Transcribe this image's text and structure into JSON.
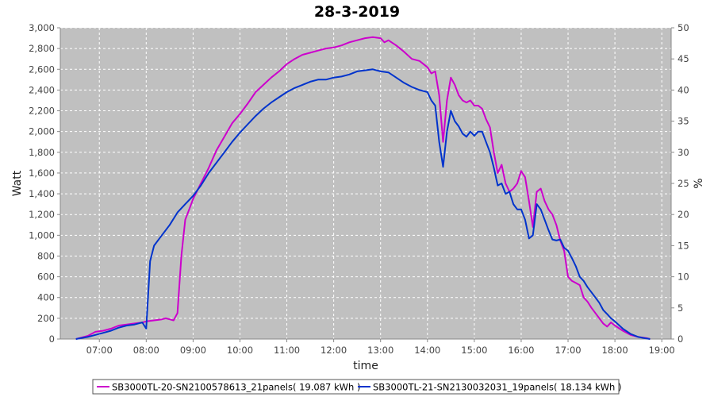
{
  "chart_data": {
    "type": "line",
    "title": "28-3-2019",
    "xlabel": "time",
    "ylabel": "Watt",
    "ylabel_right": "%",
    "ylim": [
      0,
      3000
    ],
    "ylim_right": [
      0,
      50
    ],
    "x_ticks": [
      "07:00",
      "08:00",
      "09:00",
      "10:00",
      "11:00",
      "12:00",
      "13:00",
      "14:00",
      "15:00",
      "16:00",
      "17:00",
      "18:00",
      "19:00"
    ],
    "y_ticks": [
      "0",
      "200",
      "400",
      "600",
      "800",
      "1,000",
      "1,200",
      "1,400",
      "1,600",
      "1,800",
      "2,000",
      "2,200",
      "2,400",
      "2,600",
      "2,800",
      "3,000"
    ],
    "y_right_ticks": [
      "0",
      "5",
      "10",
      "15",
      "20",
      "25",
      "30",
      "35",
      "40",
      "45",
      "50"
    ],
    "grid": true,
    "legend_position": "bottom",
    "series": [
      {
        "name": "SB3000TL-20-SN2100578613_21panels( 19.087 kWh )",
        "color": "#cc00cc",
        "points": [
          [
            "06:30",
            0
          ],
          [
            "06:45",
            30
          ],
          [
            "06:55",
            70
          ],
          [
            "07:05",
            80
          ],
          [
            "07:15",
            100
          ],
          [
            "07:25",
            130
          ],
          [
            "07:35",
            140
          ],
          [
            "07:45",
            150
          ],
          [
            "07:55",
            160
          ],
          [
            "08:00",
            170
          ],
          [
            "08:10",
            180
          ],
          [
            "08:20",
            190
          ],
          [
            "08:25",
            200
          ],
          [
            "08:30",
            190
          ],
          [
            "08:35",
            180
          ],
          [
            "08:40",
            250
          ],
          [
            "08:45",
            800
          ],
          [
            "08:50",
            1150
          ],
          [
            "08:55",
            1250
          ],
          [
            "09:00",
            1350
          ],
          [
            "09:10",
            1500
          ],
          [
            "09:20",
            1650
          ],
          [
            "09:30",
            1820
          ],
          [
            "09:40",
            1950
          ],
          [
            "09:50",
            2080
          ],
          [
            "10:00",
            2170
          ],
          [
            "10:10",
            2270
          ],
          [
            "10:20",
            2380
          ],
          [
            "10:30",
            2450
          ],
          [
            "10:40",
            2520
          ],
          [
            "10:50",
            2580
          ],
          [
            "11:00",
            2650
          ],
          [
            "11:10",
            2700
          ],
          [
            "11:20",
            2740
          ],
          [
            "11:30",
            2760
          ],
          [
            "11:40",
            2780
          ],
          [
            "11:50",
            2800
          ],
          [
            "12:00",
            2810
          ],
          [
            "12:10",
            2830
          ],
          [
            "12:20",
            2860
          ],
          [
            "12:30",
            2880
          ],
          [
            "12:40",
            2900
          ],
          [
            "12:50",
            2910
          ],
          [
            "13:00",
            2900
          ],
          [
            "13:05",
            2860
          ],
          [
            "13:10",
            2880
          ],
          [
            "13:20",
            2830
          ],
          [
            "13:30",
            2770
          ],
          [
            "13:40",
            2700
          ],
          [
            "13:50",
            2680
          ],
          [
            "14:00",
            2620
          ],
          [
            "14:05",
            2560
          ],
          [
            "14:10",
            2580
          ],
          [
            "14:15",
            2350
          ],
          [
            "14:20",
            1900
          ],
          [
            "14:25",
            2300
          ],
          [
            "14:30",
            2520
          ],
          [
            "14:35",
            2450
          ],
          [
            "14:40",
            2350
          ],
          [
            "14:45",
            2300
          ],
          [
            "14:50",
            2280
          ],
          [
            "14:55",
            2300
          ],
          [
            "15:00",
            2250
          ],
          [
            "15:05",
            2250
          ],
          [
            "15:10",
            2220
          ],
          [
            "15:15",
            2120
          ],
          [
            "15:20",
            2040
          ],
          [
            "15:25",
            1800
          ],
          [
            "15:30",
            1600
          ],
          [
            "15:35",
            1680
          ],
          [
            "15:40",
            1500
          ],
          [
            "15:45",
            1420
          ],
          [
            "15:50",
            1450
          ],
          [
            "15:55",
            1500
          ],
          [
            "16:00",
            1620
          ],
          [
            "16:05",
            1560
          ],
          [
            "16:10",
            1330
          ],
          [
            "16:15",
            1080
          ],
          [
            "16:20",
            1420
          ],
          [
            "16:25",
            1450
          ],
          [
            "16:30",
            1330
          ],
          [
            "16:35",
            1250
          ],
          [
            "16:40",
            1200
          ],
          [
            "16:45",
            1100
          ],
          [
            "16:50",
            950
          ],
          [
            "16:55",
            850
          ],
          [
            "17:00",
            600
          ],
          [
            "17:05",
            560
          ],
          [
            "17:10",
            540
          ],
          [
            "17:15",
            520
          ],
          [
            "17:20",
            400
          ],
          [
            "17:25",
            360
          ],
          [
            "17:30",
            300
          ],
          [
            "17:35",
            250
          ],
          [
            "17:40",
            200
          ],
          [
            "17:45",
            150
          ],
          [
            "17:50",
            120
          ],
          [
            "17:55",
            160
          ],
          [
            "18:00",
            130
          ],
          [
            "18:10",
            80
          ],
          [
            "18:20",
            40
          ],
          [
            "18:30",
            20
          ],
          [
            "18:40",
            10
          ],
          [
            "18:45",
            0
          ]
        ]
      },
      {
        "name": "SB3000TL-21-SN2130032031_19panels( 18.134 kWh )",
        "color": "#0033cc",
        "points": [
          [
            "06:30",
            0
          ],
          [
            "06:45",
            20
          ],
          [
            "06:55",
            40
          ],
          [
            "07:05",
            60
          ],
          [
            "07:15",
            80
          ],
          [
            "07:25",
            110
          ],
          [
            "07:35",
            130
          ],
          [
            "07:45",
            140
          ],
          [
            "07:55",
            160
          ],
          [
            "08:00",
            100
          ],
          [
            "08:05",
            750
          ],
          [
            "08:10",
            900
          ],
          [
            "08:20",
            1000
          ],
          [
            "08:30",
            1100
          ],
          [
            "08:40",
            1220
          ],
          [
            "08:50",
            1300
          ],
          [
            "09:00",
            1380
          ],
          [
            "09:10",
            1480
          ],
          [
            "09:20",
            1600
          ],
          [
            "09:30",
            1700
          ],
          [
            "09:40",
            1800
          ],
          [
            "09:50",
            1900
          ],
          [
            "10:00",
            1990
          ],
          [
            "10:10",
            2070
          ],
          [
            "10:20",
            2150
          ],
          [
            "10:30",
            2220
          ],
          [
            "10:40",
            2280
          ],
          [
            "10:50",
            2330
          ],
          [
            "11:00",
            2380
          ],
          [
            "11:10",
            2420
          ],
          [
            "11:20",
            2450
          ],
          [
            "11:30",
            2480
          ],
          [
            "11:40",
            2500
          ],
          [
            "11:50",
            2500
          ],
          [
            "12:00",
            2520
          ],
          [
            "12:10",
            2530
          ],
          [
            "12:20",
            2550
          ],
          [
            "12:30",
            2580
          ],
          [
            "12:40",
            2590
          ],
          [
            "12:50",
            2600
          ],
          [
            "13:00",
            2580
          ],
          [
            "13:10",
            2570
          ],
          [
            "13:20",
            2520
          ],
          [
            "13:30",
            2470
          ],
          [
            "13:40",
            2430
          ],
          [
            "13:50",
            2400
          ],
          [
            "14:00",
            2380
          ],
          [
            "14:05",
            2300
          ],
          [
            "14:10",
            2250
          ],
          [
            "14:15",
            1900
          ],
          [
            "14:20",
            1660
          ],
          [
            "14:25",
            2000
          ],
          [
            "14:30",
            2200
          ],
          [
            "14:35",
            2100
          ],
          [
            "14:40",
            2050
          ],
          [
            "14:45",
            1980
          ],
          [
            "14:50",
            1950
          ],
          [
            "14:55",
            2000
          ],
          [
            "15:00",
            1960
          ],
          [
            "15:05",
            2000
          ],
          [
            "15:10",
            2000
          ],
          [
            "15:15",
            1900
          ],
          [
            "15:20",
            1800
          ],
          [
            "15:25",
            1650
          ],
          [
            "15:30",
            1480
          ],
          [
            "15:35",
            1500
          ],
          [
            "15:40",
            1400
          ],
          [
            "15:45",
            1420
          ],
          [
            "15:50",
            1300
          ],
          [
            "15:55",
            1250
          ],
          [
            "16:00",
            1250
          ],
          [
            "16:05",
            1150
          ],
          [
            "16:10",
            970
          ],
          [
            "16:15",
            1000
          ],
          [
            "16:20",
            1300
          ],
          [
            "16:25",
            1250
          ],
          [
            "16:30",
            1150
          ],
          [
            "16:35",
            1050
          ],
          [
            "16:40",
            960
          ],
          [
            "16:45",
            950
          ],
          [
            "16:50",
            960
          ],
          [
            "16:55",
            880
          ],
          [
            "17:00",
            850
          ],
          [
            "17:05",
            780
          ],
          [
            "17:10",
            700
          ],
          [
            "17:15",
            600
          ],
          [
            "17:20",
            560
          ],
          [
            "17:25",
            500
          ],
          [
            "17:30",
            450
          ],
          [
            "17:35",
            400
          ],
          [
            "17:40",
            350
          ],
          [
            "17:45",
            280
          ],
          [
            "17:50",
            240
          ],
          [
            "17:55",
            200
          ],
          [
            "18:00",
            170
          ],
          [
            "18:10",
            100
          ],
          [
            "18:20",
            50
          ],
          [
            "18:30",
            20
          ],
          [
            "18:40",
            5
          ],
          [
            "18:45",
            0
          ]
        ]
      }
    ]
  },
  "colors": {
    "plot_background": "#c0c0c0",
    "grid": "#ffffff",
    "axis": "#888888"
  }
}
